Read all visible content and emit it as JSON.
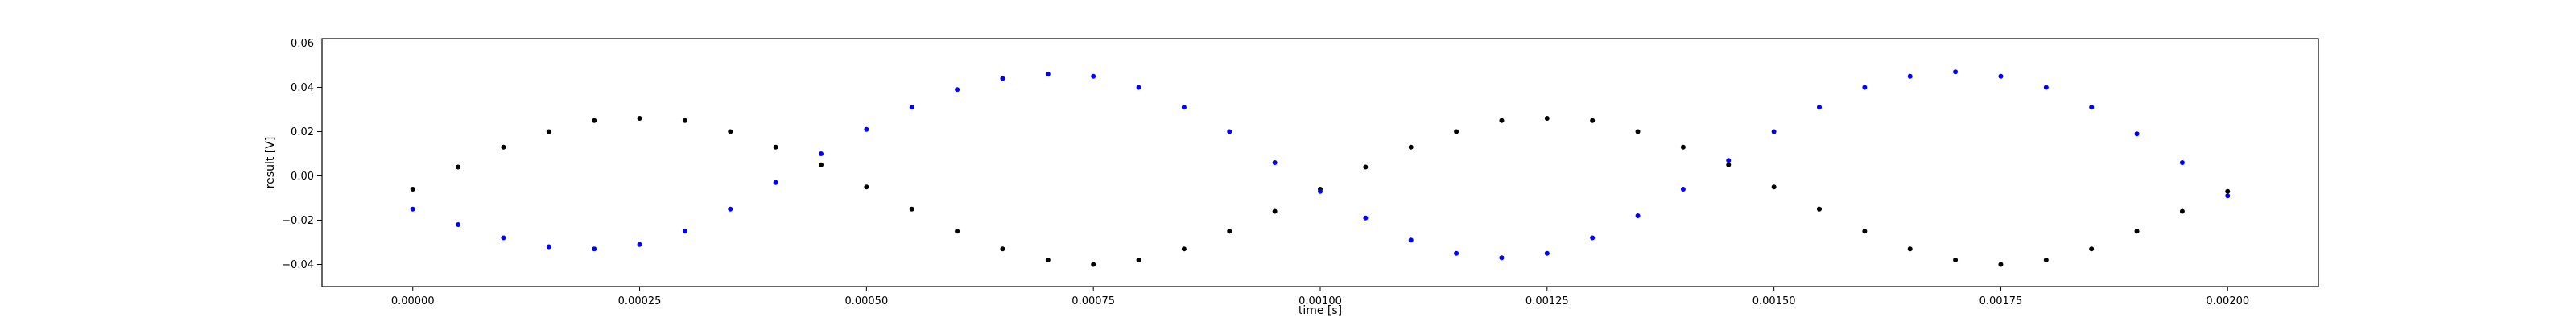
{
  "chart_data": {
    "type": "scatter",
    "xlabel": "time [s]",
    "ylabel": "result [V]",
    "xlim": [
      -0.0001,
      0.0021
    ],
    "ylim": [
      -0.05,
      0.062
    ],
    "grid": false,
    "x_ticks": [
      0.0,
      0.00025,
      0.0005,
      0.00075,
      0.001,
      0.00125,
      0.0015,
      0.00175,
      0.002
    ],
    "x_tick_labels": [
      "0.00000",
      "0.00025",
      "0.00050",
      "0.00075",
      "0.00100",
      "0.00125",
      "0.00150",
      "0.00175",
      "0.00200"
    ],
    "y_ticks": [
      -0.04,
      -0.02,
      0.0,
      0.02,
      0.04,
      0.06
    ],
    "y_tick_labels": [
      "−0.04",
      "−0.02",
      "0.00",
      "0.02",
      "0.04",
      "0.06"
    ],
    "series": [
      {
        "color": "#000000",
        "x": [
          0.0,
          5e-05,
          0.0001,
          0.00015,
          0.0002,
          0.00025,
          0.0003,
          0.00035,
          0.0004,
          0.00045,
          0.0005,
          0.00055,
          0.0006,
          0.00065,
          0.0007,
          0.00075,
          0.0008,
          0.00085,
          0.0009,
          0.00095,
          0.001,
          0.00105,
          0.0011,
          0.00115,
          0.0012,
          0.00125,
          0.0013,
          0.00135,
          0.0014,
          0.00145,
          0.0015,
          0.00155,
          0.0016,
          0.00165,
          0.0017,
          0.00175,
          0.0018,
          0.00185,
          0.0019,
          0.00195,
          0.002
        ],
        "y": [
          -0.006,
          0.004,
          0.013,
          0.02,
          0.025,
          0.026,
          0.025,
          0.02,
          0.013,
          0.005,
          -0.005,
          -0.015,
          -0.025,
          -0.033,
          -0.038,
          -0.04,
          -0.038,
          -0.033,
          -0.025,
          -0.016,
          -0.006,
          0.004,
          0.013,
          0.02,
          0.025,
          0.026,
          0.025,
          0.02,
          0.013,
          0.005,
          -0.005,
          -0.015,
          -0.025,
          -0.033,
          -0.038,
          -0.04,
          -0.038,
          -0.033,
          -0.025,
          -0.016,
          -0.007
        ]
      },
      {
        "color": "#0000ff",
        "x": [
          0.0,
          5e-05,
          0.0001,
          0.00015,
          0.0002,
          0.00025,
          0.0003,
          0.00035,
          0.0004,
          0.00045,
          0.0005,
          0.00055,
          0.0006,
          0.00065,
          0.0007,
          0.00075,
          0.0008,
          0.00085,
          0.0009,
          0.00095,
          0.001,
          0.00105,
          0.0011,
          0.00115,
          0.0012,
          0.00125,
          0.0013,
          0.00135,
          0.0014,
          0.00145,
          0.0015,
          0.00155,
          0.0016,
          0.00165,
          0.0017,
          0.00175,
          0.0018,
          0.00185,
          0.0019,
          0.00195,
          0.002
        ],
        "y": [
          -0.015,
          -0.022,
          -0.028,
          -0.032,
          -0.033,
          -0.031,
          -0.025,
          -0.015,
          -0.003,
          0.01,
          0.021,
          0.031,
          0.039,
          0.044,
          0.046,
          0.045,
          0.04,
          0.031,
          0.02,
          0.006,
          -0.007,
          -0.019,
          -0.029,
          -0.035,
          -0.037,
          -0.035,
          -0.028,
          -0.018,
          -0.006,
          0.007,
          0.02,
          0.031,
          0.04,
          0.045,
          0.047,
          0.045,
          0.04,
          0.031,
          0.019,
          0.006,
          -0.009
        ]
      }
    ]
  }
}
